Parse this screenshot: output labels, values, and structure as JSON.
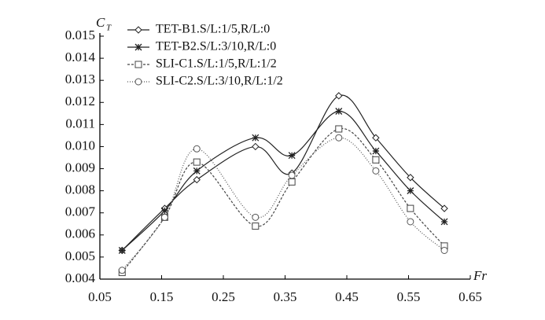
{
  "chart_data": {
    "type": "line",
    "x_label": "Fr",
    "y_label": "C",
    "y_label_subscript": "T",
    "x": [
      0.086,
      0.155,
      0.207,
      0.302,
      0.361,
      0.437,
      0.497,
      0.553,
      0.608
    ],
    "series": [
      {
        "name": "TET-B1.S/L:1/5,R/L:0",
        "color": "#222222",
        "marker": "diamond",
        "dash": "none",
        "values": [
          0.0053,
          0.0072,
          0.0085,
          0.01,
          0.0088,
          0.0123,
          0.0104,
          0.0086,
          0.0072
        ]
      },
      {
        "name": "TET-B2.S/L:3/10,R/L:0",
        "color": "#222222",
        "marker": "star",
        "dash": "none",
        "values": [
          0.0053,
          0.0071,
          0.0089,
          0.0104,
          0.0096,
          0.0116,
          0.0098,
          0.008,
          0.0066
        ]
      },
      {
        "name": "SLI-C1.S/L:1/5,R/L:1/2",
        "color": "#444444",
        "marker": "square",
        "dash": "3,2",
        "values": [
          0.0043,
          0.0068,
          0.0093,
          0.0064,
          0.0084,
          0.0108,
          0.0094,
          0.0072,
          0.0055
        ]
      },
      {
        "name": "SLI-C2.S/L:3/10,R/L:1/2",
        "color": "#555555",
        "marker": "circle",
        "dash": "1,2",
        "values": [
          0.0044,
          0.0068,
          0.0099,
          0.0068,
          0.0087,
          0.0104,
          0.0089,
          0.0066,
          0.0053
        ]
      }
    ],
    "xlim": [
      0.05,
      0.65
    ],
    "xticks": [
      0.05,
      0.15,
      0.25,
      0.35,
      0.45,
      0.55,
      0.65
    ],
    "ylim": [
      0.004,
      0.015
    ],
    "yticks": [
      0.004,
      0.005,
      0.006,
      0.007,
      0.008,
      0.009,
      {
        "value": 0.01,
        "label": "0.010"
      },
      0.011,
      0.012,
      0.013,
      0.014,
      0.015
    ],
    "grid": false
  }
}
